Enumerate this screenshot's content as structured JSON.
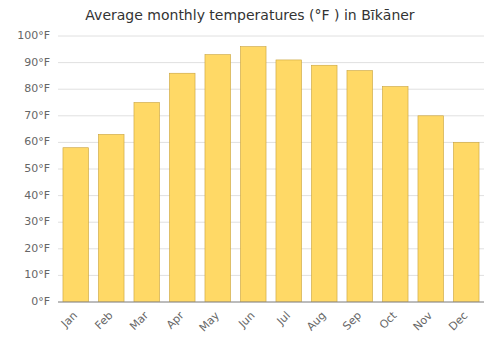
{
  "chart_data": {
    "type": "bar",
    "title": "Average monthly temperatures (°F ) in Bīkāner",
    "categories": [
      "Jan",
      "Feb",
      "Mar",
      "Apr",
      "May",
      "Jun",
      "Jul",
      "Aug",
      "Sep",
      "Oct",
      "Nov",
      "Dec"
    ],
    "values": [
      58,
      63,
      75,
      86,
      93,
      96,
      91,
      89,
      87,
      81,
      70,
      60
    ],
    "color": "#FFD966",
    "ylim": [
      0,
      100
    ],
    "yticks": [
      {
        "value": 0,
        "label": "0°F"
      },
      {
        "value": 10,
        "label": "10°F"
      },
      {
        "value": 20,
        "label": "20°F"
      },
      {
        "value": 30,
        "label": "30°F"
      },
      {
        "value": 40,
        "label": "40°F"
      },
      {
        "value": 50,
        "label": "50°F"
      },
      {
        "value": 60,
        "label": "60°F"
      },
      {
        "value": 70,
        "label": "70°F"
      },
      {
        "value": 80,
        "label": "80°F"
      },
      {
        "value": 90,
        "label": "90°F"
      },
      {
        "value": 100,
        "label": "100°F"
      }
    ],
    "grid": true
  }
}
